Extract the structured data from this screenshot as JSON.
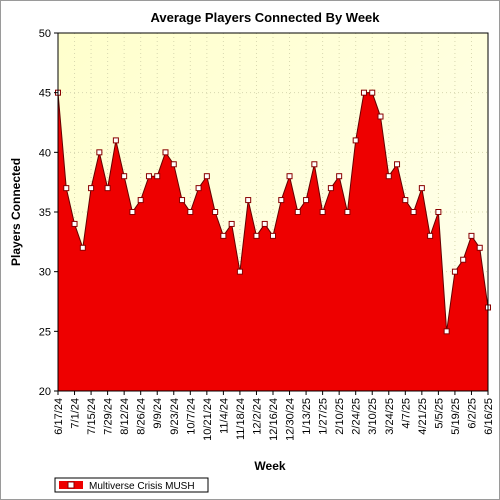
{
  "colors": {
    "page_border": "#9a9a9a",
    "plot_bg_top": "#ffffcc",
    "plot_bg_bottom": "#fffff0",
    "plot_border": "#000000",
    "grid": "#d8d8b0",
    "area_fill": "#ee0000",
    "area_edge": "#660000",
    "marker_fill": "#ffffff",
    "marker_edge": "#880000"
  },
  "chart_data": {
    "type": "area",
    "title": "Average Players Connected By Week",
    "xlabel": "Week",
    "ylabel": "Players Connected",
    "ylim": [
      20,
      50
    ],
    "y_ticks": [
      20,
      25,
      30,
      35,
      40,
      45,
      50
    ],
    "grid": "dotted",
    "legend": "bottom-left",
    "x_tick_labels": [
      {
        "index": 0,
        "label": "6/17/24"
      },
      {
        "index": 2,
        "label": "7/1/24"
      },
      {
        "index": 4,
        "label": "7/15/24"
      },
      {
        "index": 6,
        "label": "7/29/24"
      },
      {
        "index": 8,
        "label": "8/12/24"
      },
      {
        "index": 10,
        "label": "8/26/24"
      },
      {
        "index": 12,
        "label": "9/9/24"
      },
      {
        "index": 14,
        "label": "9/23/24"
      },
      {
        "index": 16,
        "label": "10/7/24"
      },
      {
        "index": 18,
        "label": "10/21/24"
      },
      {
        "index": 20,
        "label": "11/4/24"
      },
      {
        "index": 22,
        "label": "11/18/24"
      },
      {
        "index": 24,
        "label": "12/2/24"
      },
      {
        "index": 26,
        "label": "12/16/24"
      },
      {
        "index": 28,
        "label": "12/30/24"
      },
      {
        "index": 30,
        "label": "1/13/25"
      },
      {
        "index": 32,
        "label": "1/27/25"
      },
      {
        "index": 34,
        "label": "2/10/25"
      },
      {
        "index": 36,
        "label": "2/24/25"
      },
      {
        "index": 38,
        "label": "3/10/25"
      },
      {
        "index": 40,
        "label": "3/24/25"
      },
      {
        "index": 42,
        "label": "4/7/25"
      },
      {
        "index": 44,
        "label": "4/21/25"
      },
      {
        "index": 46,
        "label": "5/5/25"
      },
      {
        "index": 48,
        "label": "5/19/25"
      },
      {
        "index": 50,
        "label": "6/2/25"
      },
      {
        "index": 52,
        "label": "6/16/25"
      }
    ],
    "series": [
      {
        "name": "Multiverse Crisis MUSH",
        "values": [
          45,
          37,
          34,
          32,
          37,
          40,
          37,
          41,
          38,
          35,
          36,
          38,
          38,
          40,
          39,
          36,
          35,
          37,
          38,
          35,
          33,
          34,
          30,
          36,
          33,
          34,
          33,
          36,
          38,
          35,
          36,
          39,
          35,
          37,
          38,
          35,
          41,
          45,
          45,
          43,
          38,
          39,
          36,
          35,
          37,
          33,
          35,
          25,
          30,
          31,
          33,
          32,
          27
        ]
      }
    ]
  }
}
